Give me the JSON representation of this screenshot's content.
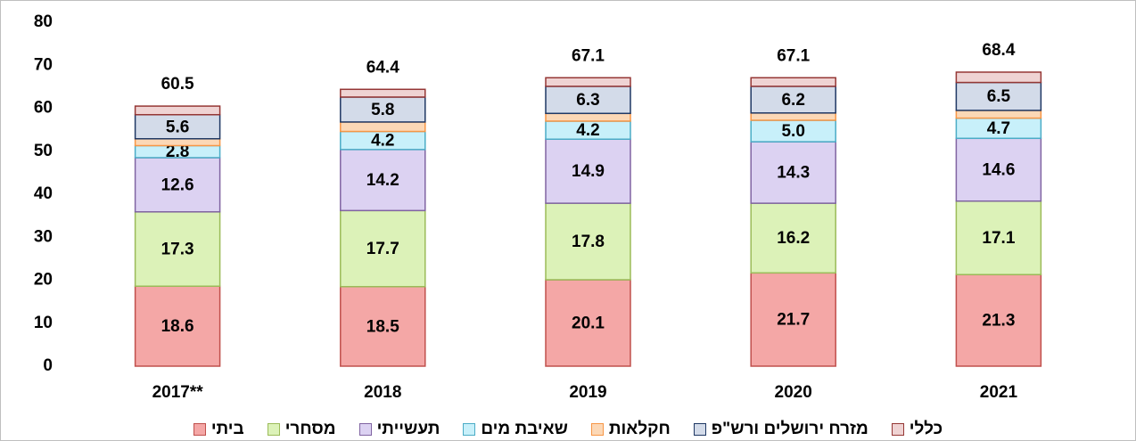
{
  "chart_data": {
    "type": "stacked_bar",
    "categories": [
      "2017**",
      "2018",
      "2019",
      "2020",
      "2021"
    ],
    "ylim": [
      0,
      80
    ],
    "yticks": [
      0,
      10,
      20,
      30,
      40,
      50,
      60,
      70,
      80
    ],
    "totals": [
      60.5,
      64.4,
      67.1,
      67.1,
      68.4
    ],
    "series": [
      {
        "name": "ביתי",
        "color": "#f4a7a6",
        "edgecolor": "#c0504d",
        "values": [
          18.6,
          18.5,
          20.1,
          21.7,
          21.3
        ],
        "value_labels": [
          "18.6",
          "18.5",
          "20.1",
          "21.7",
          "21.3"
        ]
      },
      {
        "name": "מסחרי",
        "color": "#dcf2b8",
        "edgecolor": "#9bbb59",
        "values": [
          17.3,
          17.7,
          17.8,
          16.2,
          17.1
        ],
        "value_labels": [
          "17.3",
          "17.7",
          "17.8",
          "16.2",
          "17.1"
        ]
      },
      {
        "name": "תעשייתי",
        "color": "#dcd2f2",
        "edgecolor": "#8064a2",
        "values": [
          12.6,
          14.2,
          14.9,
          14.3,
          14.6
        ],
        "value_labels": [
          "12.6",
          "14.2",
          "14.9",
          "14.3",
          "14.6"
        ]
      },
      {
        "name": "שאיבת מים",
        "color": "#c8f0fa",
        "edgecolor": "#4bacc6",
        "values": [
          2.8,
          4.2,
          4.2,
          5.0,
          4.7
        ],
        "value_labels": [
          "2.8",
          "4.2",
          "4.2",
          "5.0",
          "4.7"
        ]
      },
      {
        "name": "חקלאות",
        "color": "#fcd8b6",
        "edgecolor": "#f79646",
        "values": [
          1.6,
          2.2,
          1.8,
          1.7,
          1.8
        ]
      },
      {
        "name": "מזרח ירושלים ורש\"פ",
        "color": "#d3dbe9",
        "edgecolor": "#1f3864",
        "values": [
          5.6,
          5.8,
          6.3,
          6.2,
          6.5
        ],
        "value_labels": [
          "5.6",
          "5.8",
          "6.3",
          "6.2",
          "6.5"
        ]
      },
      {
        "name": "כללי",
        "color": "#efd3d3",
        "edgecolor": "#953735",
        "values": [
          2.0,
          1.8,
          2.0,
          2.0,
          2.4
        ]
      }
    ]
  }
}
